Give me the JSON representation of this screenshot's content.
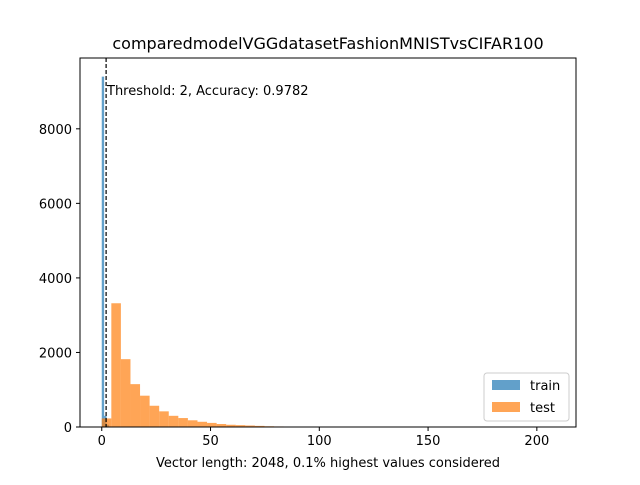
{
  "chart_data": {
    "type": "bar",
    "title": "comparedmodelVGGdatasetFashionMNISTvsCIFAR100",
    "xlabel": "Vector length: 2048, 0.1% highest values considered",
    "ylabel": "",
    "xlim": [
      -10,
      218
    ],
    "ylim": [
      0,
      9900
    ],
    "xticks": [
      0,
      50,
      100,
      150,
      200
    ],
    "yticks": [
      0,
      2000,
      4000,
      6000,
      8000
    ],
    "grid": false,
    "legend": "lower-right",
    "bin_width": 4.4,
    "series": [
      {
        "name": "train",
        "color": "#1f77b4",
        "bins": [
          {
            "x0": 0,
            "x1": 1.1,
            "value": 9400
          },
          {
            "x0": 1.1,
            "x1": 2.2,
            "value": 300
          },
          {
            "x0": 2.2,
            "x1": 3.3,
            "value": 60
          }
        ]
      },
      {
        "name": "test",
        "color": "#ff7f0e",
        "bins": [
          {
            "x0": 0,
            "x1": 4.4,
            "value": 230
          },
          {
            "x0": 4.4,
            "x1": 8.8,
            "value": 3320
          },
          {
            "x0": 8.8,
            "x1": 13.2,
            "value": 1820
          },
          {
            "x0": 13.2,
            "x1": 17.6,
            "value": 1150
          },
          {
            "x0": 17.6,
            "x1": 22.0,
            "value": 840
          },
          {
            "x0": 22.0,
            "x1": 26.4,
            "value": 570
          },
          {
            "x0": 26.4,
            "x1": 30.8,
            "value": 420
          },
          {
            "x0": 30.8,
            "x1": 35.2,
            "value": 300
          },
          {
            "x0": 35.2,
            "x1": 39.6,
            "value": 240
          },
          {
            "x0": 39.6,
            "x1": 44.0,
            "value": 180
          },
          {
            "x0": 44.0,
            "x1": 48.4,
            "value": 140
          },
          {
            "x0": 48.4,
            "x1": 52.8,
            "value": 110
          },
          {
            "x0": 52.8,
            "x1": 57.2,
            "value": 80
          },
          {
            "x0": 57.2,
            "x1": 61.6,
            "value": 60
          },
          {
            "x0": 61.6,
            "x1": 66.0,
            "value": 50
          },
          {
            "x0": 66.0,
            "x1": 70.4,
            "value": 40
          },
          {
            "x0": 70.4,
            "x1": 74.8,
            "value": 30
          },
          {
            "x0": 74.8,
            "x1": 79.2,
            "value": 20
          },
          {
            "x0": 79.2,
            "x1": 83.6,
            "value": 15
          }
        ]
      }
    ],
    "threshold_line": {
      "x": 2,
      "style": "dashed",
      "color": "#000000"
    },
    "annotation": "Threshold: 2, Accuracy: 0.9782"
  }
}
